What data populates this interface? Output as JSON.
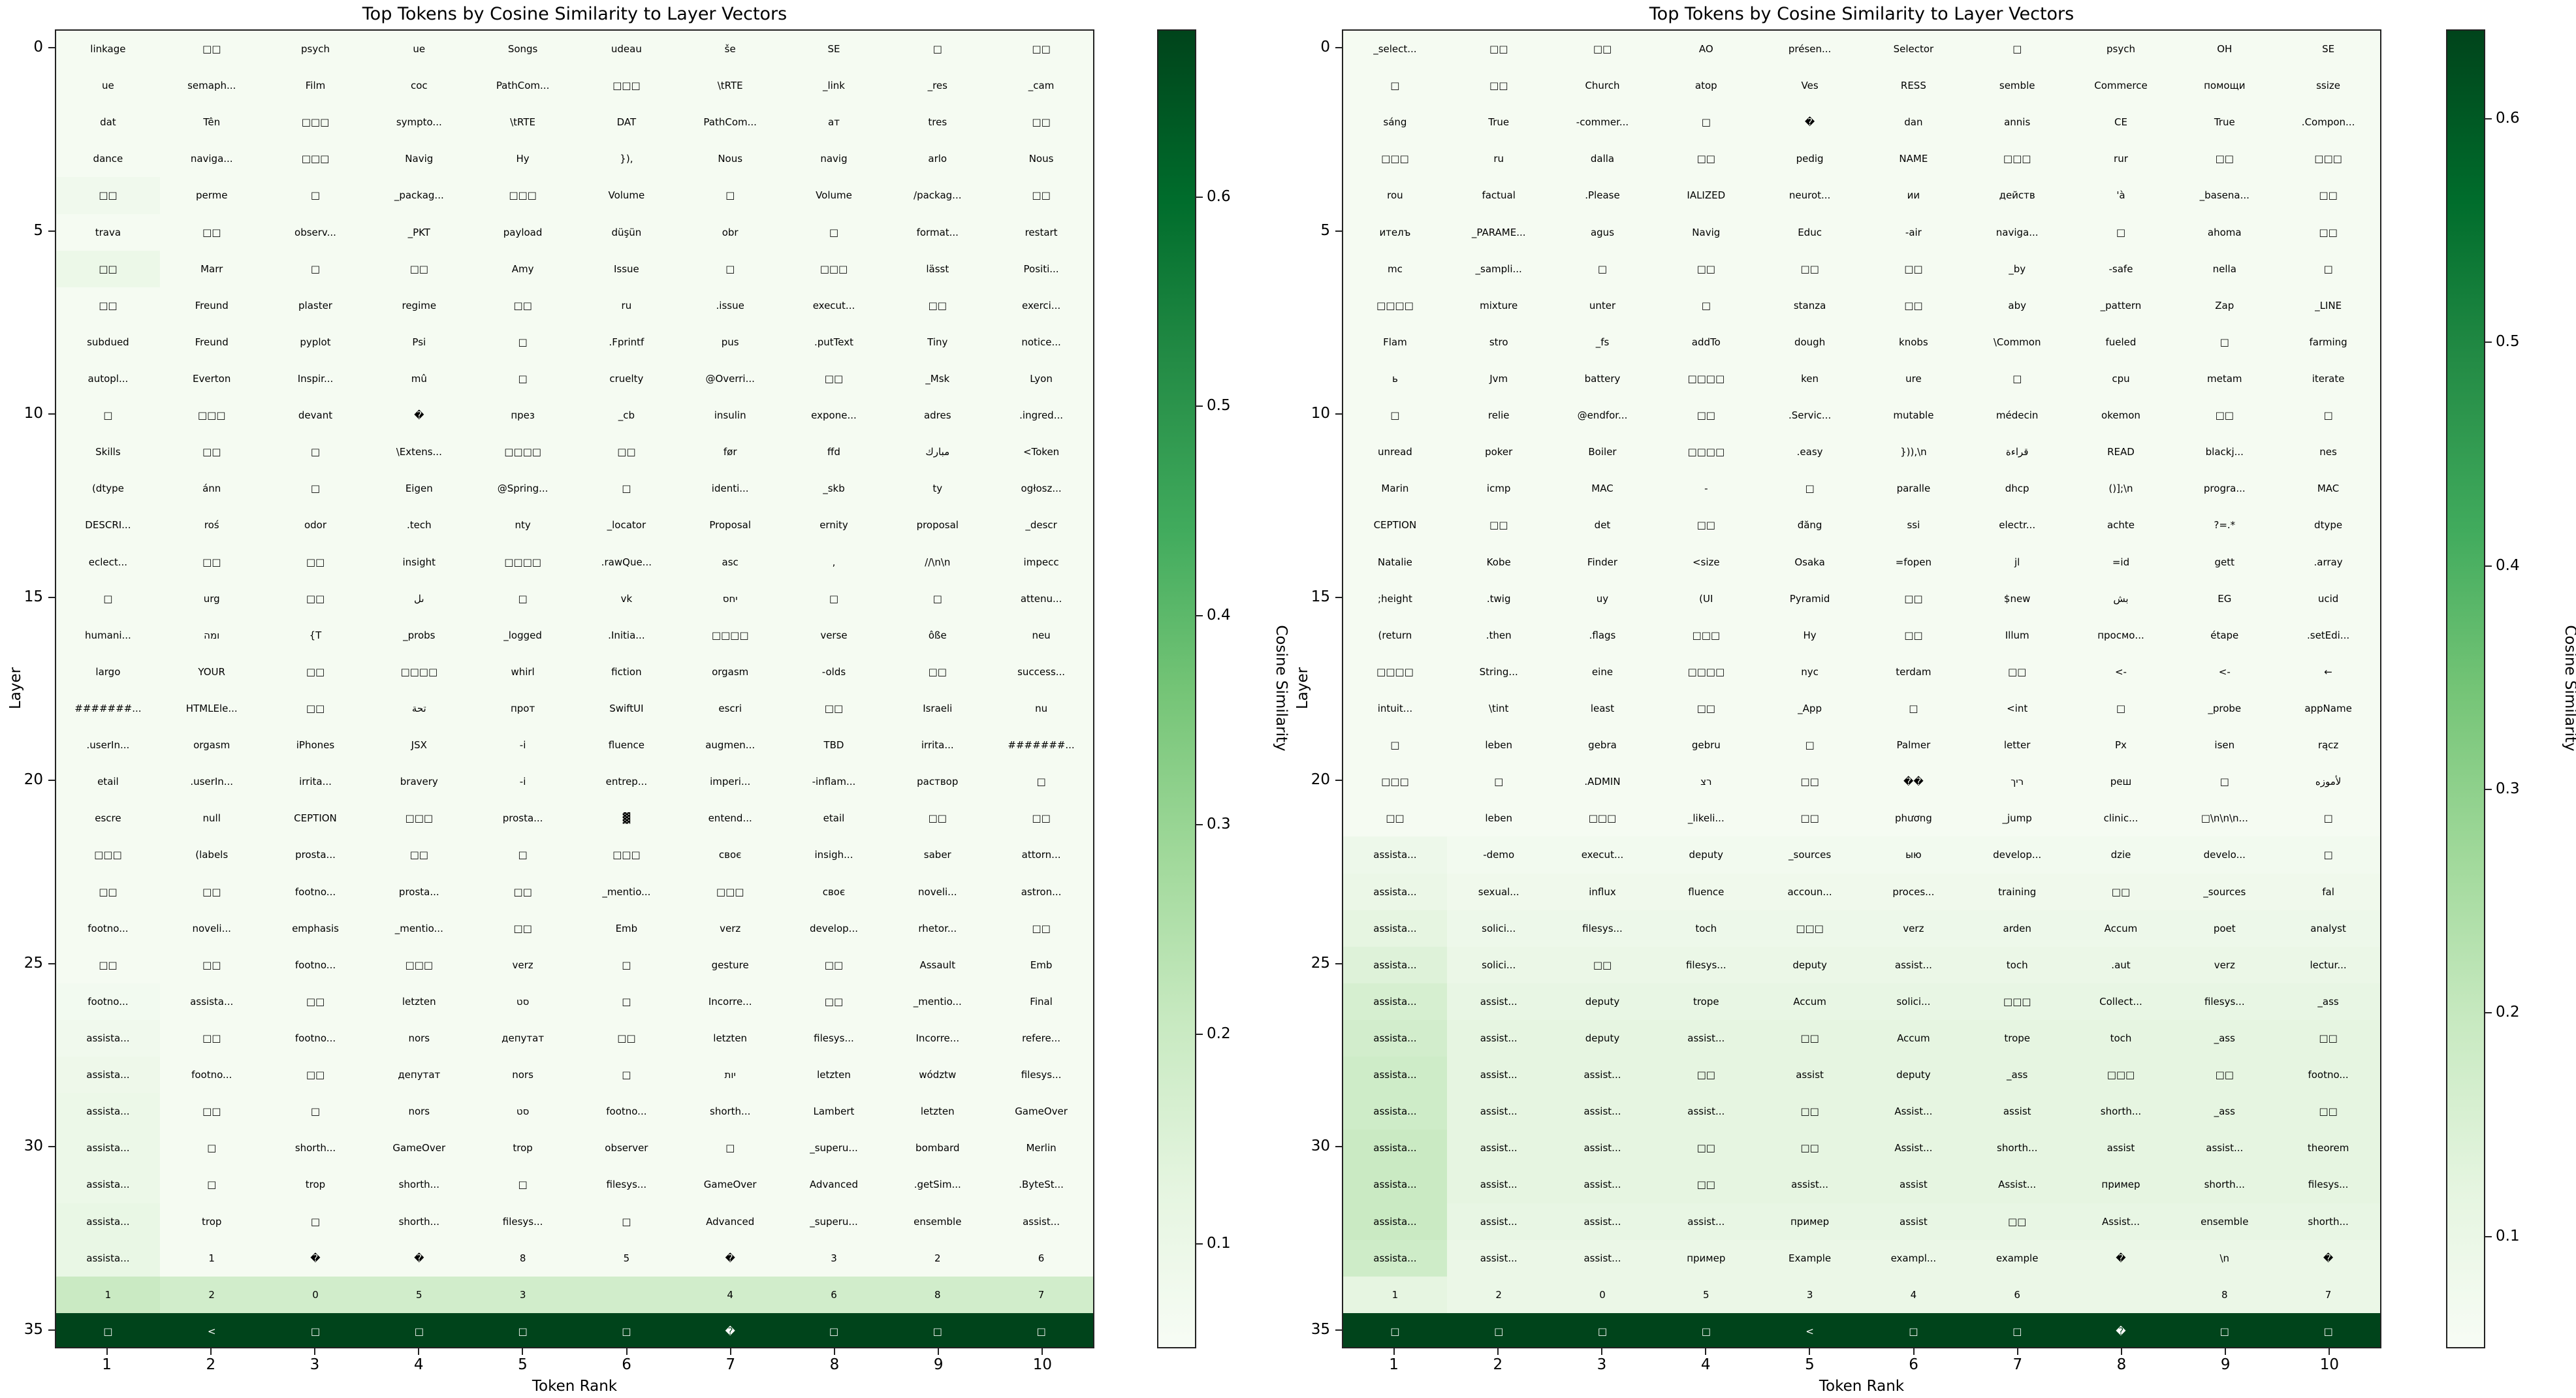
{
  "colors": {
    "low": "#f7fcf5",
    "high": "#00441b"
  },
  "yticks": [
    "0",
    "5",
    "10",
    "15",
    "20",
    "25",
    "30",
    "35"
  ],
  "xticks": [
    "1",
    "2",
    "3",
    "4",
    "5",
    "6",
    "7",
    "8",
    "9",
    "10"
  ],
  "xlabel": "Token Rank",
  "ylabel": "Layer",
  "colorbar_label": "Cosine Similarity",
  "chart_data": [
    {
      "type": "heatmap",
      "title": "Top Tokens by Cosine Similarity to Layer Vectors",
      "xlabel": "Token Rank",
      "ylabel": "Layer",
      "colorbar_label": "Cosine Similarity",
      "colorbar_ticks": [
        "0.1",
        "0.2",
        "0.3",
        "0.4",
        "0.5",
        "0.6"
      ],
      "vmin": 0.05,
      "vmax": 0.68,
      "tokens": [
        [
          "linkage",
          "□□",
          "psych",
          "ue",
          "Songs",
          "udeau",
          "še",
          "SE",
          "□",
          "□□"
        ],
        [
          "ue",
          "semaph...",
          "Film",
          "coc",
          "PathCom...",
          "□□□",
          "\\tRTE",
          "_link",
          "_res",
          "_cam"
        ],
        [
          "dat",
          "Tên",
          "□□□",
          "sympto...",
          "\\tRTE",
          "DAT",
          "PathCom...",
          "ат",
          "tres",
          "□□"
        ],
        [
          "dance",
          "naviga...",
          "□□□",
          "Navig",
          "Hy",
          "}),",
          "Nous",
          "navig",
          "arlo",
          "Nous"
        ],
        [
          "□□",
          "perme",
          "□",
          "_packag...",
          "□□□",
          "Volume",
          "□",
          "Volume",
          "/packag...",
          "□□"
        ],
        [
          "trava",
          "□□",
          "observ...",
          "_PKT",
          "payload",
          "düşün",
          "obr",
          "□",
          "format...",
          "restart"
        ],
        [
          "□□",
          "Marr",
          "□",
          "□□",
          "Amy",
          "Issue",
          "□",
          "□□□",
          "lässt",
          "Positi..."
        ],
        [
          "□□",
          "Freund",
          "plaster",
          "regime",
          "□□",
          "ru",
          ".issue",
          "execut...",
          "□□",
          "exerci..."
        ],
        [
          "subdued",
          "Freund",
          "pyplot",
          "Psi",
          "□",
          ".Fprintf",
          "pus",
          ".putText",
          "Tiny",
          "notice..."
        ],
        [
          "autopl...",
          "Everton",
          "Inspir...",
          "mû",
          "□",
          "cruelty",
          "@Overri...",
          "□□",
          "_Msk",
          "Lyon"
        ],
        [
          "□",
          "□□□",
          "devant",
          "�",
          "през",
          "_cb",
          "insulin",
          "expone...",
          "adres",
          ".ingred..."
        ],
        [
          "Skills",
          "□□",
          "□",
          "\\Extens...",
          "□□□□",
          "□□",
          "før",
          "ffd",
          "مبارك",
          "<Token"
        ],
        [
          "(dtype",
          "ánn",
          "□",
          "Eigen",
          "@Spring...",
          "□",
          "identi...",
          "_skb",
          "ty",
          "ogłosz..."
        ],
        [
          "DESCRI...",
          "roś",
          "odor",
          ".tech",
          "nty",
          "_locator",
          "Proposal",
          "ernity",
          "proposal",
          "_descr"
        ],
        [
          "eclect...",
          "□□",
          "□□",
          "insight",
          "□□□□",
          ".rawQue...",
          "asc",
          ",",
          "//\\n\\n",
          "impecc"
        ],
        [
          "□",
          "urg",
          "□□",
          "ىل",
          "□",
          "vk",
          "יחס",
          "□",
          "□",
          "attenu..."
        ],
        [
          "humani...",
          "ומה",
          "{T",
          "_probs",
          "_logged",
          ".Initia...",
          "□□□□",
          "verse",
          "ôße",
          "neu"
        ],
        [
          "largo",
          "YOUR",
          "□□",
          "□□□□",
          "whirl",
          "fiction",
          "orgasm",
          "-olds",
          "□□",
          "success..."
        ],
        [
          "#######...",
          "HTMLEle...",
          "□□",
          "تحة",
          "прот",
          "SwiftUI",
          "escri",
          "□□",
          "Israeli",
          "nu"
        ],
        [
          ".userIn...",
          "orgasm",
          "iPhones",
          "JSX",
          "-i",
          "fluence",
          "augmen...",
          "TBD",
          "irrita...",
          "#######..."
        ],
        [
          "etail",
          ".userIn...",
          "irrita...",
          "bravery",
          "-i",
          "entrep...",
          "imperi...",
          "-inflam...",
          "раствор",
          "□"
        ],
        [
          "escre",
          "null",
          "CEPTION",
          "□□□",
          "prosta...",
          "▓",
          "entend...",
          "etail",
          "□□",
          "□□"
        ],
        [
          "□□□",
          "(labels",
          "prosta...",
          "□□",
          "□",
          "□□□",
          "своє",
          "insigh...",
          "saber",
          "attorn..."
        ],
        [
          "□□",
          "□□",
          "footno...",
          "prosta...",
          "□□",
          "_mentio...",
          "□□□",
          "своє",
          "noveli...",
          "astron..."
        ],
        [
          "footno...",
          "noveli...",
          "emphasis",
          "_mentio...",
          "□□",
          "Emb",
          "verz",
          "develop...",
          "rhetor...",
          "□□"
        ],
        [
          "□□",
          "□□",
          "footno...",
          "□□□",
          "verz",
          "□",
          "gesture",
          "□□",
          "Assault",
          "Emb"
        ],
        [
          "footno...",
          "assista...",
          "□□",
          "letzten",
          "סט",
          "□",
          "Incorre...",
          "□□",
          "_mentio...",
          "Final"
        ],
        [
          "assista...",
          "□□",
          "footno...",
          "nors",
          "депутат",
          "□□",
          "letzten",
          "filesys...",
          "Incorre...",
          "refere..."
        ],
        [
          "assista...",
          "footno...",
          "□□",
          "депутат",
          "nors",
          "□",
          "יות",
          "letzten",
          "wództw",
          "filesys..."
        ],
        [
          "assista...",
          "□□",
          "□",
          "nors",
          "סט",
          "footno...",
          "shorth...",
          "Lambert",
          "letzten",
          "GameOver"
        ],
        [
          "assista...",
          "□",
          "shorth...",
          "GameOver",
          "trop",
          "observer",
          "□",
          "_superu...",
          "bombard",
          "Merlin"
        ],
        [
          "assista...",
          "□",
          "trop",
          "shorth...",
          "□",
          "filesys...",
          "GameOver",
          "Advanced",
          ".getSim...",
          ".ByteSt..."
        ],
        [
          "assista...",
          "trop",
          "□",
          "shorth...",
          "filesys...",
          "□",
          "Advanced",
          "_superu...",
          "ensemble",
          "assist..."
        ],
        [
          "assista...",
          "1",
          "�",
          "�",
          "8",
          "5",
          "�",
          "3",
          "2",
          "6"
        ],
        [
          "1",
          "2",
          "0",
          "5",
          "3",
          "",
          "4",
          "6",
          "8",
          "7"
        ],
        [
          "□",
          "<",
          "□",
          "□",
          "□",
          "□",
          "�",
          "□",
          "□",
          "□"
        ]
      ],
      "first_col_intensity": [
        0.06,
        0.06,
        0.06,
        0.06,
        0.08,
        0.06,
        0.1,
        0.06,
        0.06,
        0.06,
        0.06,
        0.06,
        0.06,
        0.06,
        0.06,
        0.06,
        0.06,
        0.06,
        0.06,
        0.06,
        0.06,
        0.06,
        0.06,
        0.06,
        0.06,
        0.06,
        0.07,
        0.08,
        0.09,
        0.1,
        0.1,
        0.1,
        0.11,
        0.11,
        0.2,
        0.68
      ],
      "rest_intensity": [
        0.06,
        0.06,
        0.06,
        0.06,
        0.06,
        0.06,
        0.06,
        0.06,
        0.06,
        0.06,
        0.06,
        0.06,
        0.06,
        0.06,
        0.06,
        0.06,
        0.06,
        0.06,
        0.06,
        0.06,
        0.06,
        0.06,
        0.06,
        0.06,
        0.06,
        0.06,
        0.06,
        0.06,
        0.06,
        0.06,
        0.06,
        0.06,
        0.06,
        0.06,
        0.18,
        0.68
      ]
    },
    {
      "type": "heatmap",
      "title": "Top Tokens by Cosine Similarity to Layer Vectors",
      "xlabel": "Token Rank",
      "ylabel": "Layer",
      "colorbar_label": "Cosine Similarity",
      "colorbar_ticks": [
        "0.1",
        "0.2",
        "0.3",
        "0.4",
        "0.5",
        "0.6"
      ],
      "vmin": 0.05,
      "vmax": 0.64,
      "tokens": [
        [
          "_select...",
          "□□",
          "□□",
          "AO",
          "présen...",
          "Selector",
          "□",
          "psych",
          "OH",
          "SE"
        ],
        [
          "□",
          "□□",
          "Church",
          "atop",
          "Ves",
          "RESS",
          "semble",
          "Commerce",
          "помощи",
          "ssize"
        ],
        [
          "sáng",
          "True",
          "-commer...",
          "□",
          "�",
          "dan",
          "annis",
          "CE",
          "True",
          ".Compon..."
        ],
        [
          "□□□",
          "ru",
          "dalla",
          "□□",
          "pedig",
          "NAME",
          "□□□",
          "rur",
          "□□",
          "□□□"
        ],
        [
          "rou",
          "factual",
          ".Please",
          "IALIZED",
          "neurot...",
          "ии",
          "действ",
          "'à",
          "_basena...",
          "□□"
        ],
        [
          "ителъ",
          "_PARAME...",
          "agus",
          "Navig",
          "Educ",
          "-air",
          "naviga...",
          "□",
          "ahoma",
          "□□"
        ],
        [
          "mc",
          "_sampli...",
          "□",
          "□□",
          "□□",
          "□□",
          "_by",
          "-safe",
          "nella",
          "□"
        ],
        [
          "□□□□",
          "mixture",
          "unter",
          "□",
          "stanza",
          "□□",
          "aby",
          "_pattern",
          "Zap",
          "_LINE"
        ],
        [
          "Flam",
          "stro",
          "_fs",
          "addTo",
          "dough",
          "knobs",
          "\\Common",
          "fueled",
          "□",
          "farming"
        ],
        [
          "ь",
          "Jvm",
          "battery",
          "□□□□",
          "ken",
          "ure",
          "□",
          "cpu",
          "metam",
          "iterate"
        ],
        [
          "□",
          "relie",
          "@endfor...",
          "□□",
          ".Servic...",
          "mutable",
          "médecin",
          "okemon",
          "□□",
          "□"
        ],
        [
          "unread",
          "poker",
          "Boiler",
          "□□□□",
          ".easy",
          "})),\\n",
          "قراءة",
          "READ",
          "blackj...",
          "nes"
        ],
        [
          "Marin",
          "icmp",
          "MAC",
          "-",
          "□",
          "paralle",
          "dhcp",
          "()];\\n",
          "progra...",
          "MAC"
        ],
        [
          "CEPTION",
          "□□",
          "det",
          "□□",
          "đăng",
          "ssi",
          "electr...",
          "achte",
          "?=.*",
          "dtype"
        ],
        [
          "Natalie",
          "Kobe",
          "Finder",
          "<size",
          "Osaka",
          "=fopen",
          "jl",
          "=id",
          "gett",
          ".array"
        ],
        [
          ";height",
          ".twig",
          "uy",
          "(UI",
          "Pyramid",
          "□□",
          "$new",
          "بش",
          "EG",
          "ucid"
        ],
        [
          "(return",
          ".then",
          ".flags",
          "□□□",
          "Hy",
          "□□",
          "Illum",
          "просмо...",
          "étape",
          ".setEdi..."
        ],
        [
          "□□□□",
          "String...",
          "eine",
          "□□□□",
          "nyc",
          "terdam",
          "□□",
          "<-",
          "<-",
          "←"
        ],
        [
          "intuit...",
          "\\tint",
          "least",
          "□□",
          "_App",
          "□",
          "<int",
          "□",
          "_probe",
          "appName"
        ],
        [
          "□",
          "leben",
          "gebra",
          "gebru",
          "□",
          "Palmer",
          "letter",
          "Px",
          "isen",
          "rącz"
        ],
        [
          "□□□",
          "□",
          ".ADMIN",
          "רצ",
          "□□",
          "��",
          "ריך",
          "реш",
          "□",
          "لأموزه"
        ],
        [
          "□□",
          "leben",
          "□□□",
          "_likeli...",
          "□□",
          "phương",
          "_jump",
          "clinic...",
          "□\\n\\n\\n...",
          "□"
        ],
        [
          "assista...",
          "-demo",
          "execut...",
          "deputy",
          "_sources",
          "ыю",
          "develop...",
          "dzie",
          "develo...",
          "□"
        ],
        [
          "assista...",
          "sexual...",
          "influx",
          "fluence",
          "accoun...",
          "proces...",
          "training",
          "□□",
          "_sources",
          "fal"
        ],
        [
          "assista...",
          "solici...",
          "filesys...",
          "toch",
          "□□□",
          "verz",
          "arden",
          "Accum",
          "poet",
          "analyst"
        ],
        [
          "assista...",
          "solici...",
          "□□",
          "filesys...",
          "deputy",
          "assist...",
          "toch",
          ".aut",
          "verz",
          "lectur..."
        ],
        [
          "assista...",
          "assist...",
          "deputy",
          "trope",
          "Accum",
          "solici...",
          "□□□",
          "Collect...",
          "filesys...",
          "_ass"
        ],
        [
          "assista...",
          "assist...",
          "deputy",
          "assist...",
          "□□",
          "Accum",
          "trope",
          "toch",
          "_ass",
          "□□"
        ],
        [
          "assista...",
          "assist...",
          "assist...",
          "□□",
          "assist",
          "deputy",
          "_ass",
          "□□□",
          "□□",
          "footno..."
        ],
        [
          "assista...",
          "assist...",
          "assist...",
          "assist...",
          "□□",
          "Assist...",
          "assist",
          "shorth...",
          "_ass",
          "□□"
        ],
        [
          "assista...",
          "assist...",
          "assist...",
          "□□",
          "□□",
          "Assist...",
          "shorth...",
          "assist",
          "assist...",
          "theorem"
        ],
        [
          "assista...",
          "assist...",
          "assist...",
          "□□",
          "assist...",
          "assist",
          "Assist...",
          "пример",
          "shorth...",
          "filesys..."
        ],
        [
          "assista...",
          "assist...",
          "assist...",
          "assist...",
          "пример",
          "assist",
          "□□",
          "Assist...",
          "ensemble",
          "shorth..."
        ],
        [
          "assista...",
          "assist...",
          "assist...",
          "пример",
          "Example",
          "exampl...",
          "example",
          "�",
          "\\n",
          "�"
        ],
        [
          "1",
          "2",
          "0",
          "5",
          "3",
          "4",
          "6",
          "",
          "8",
          "7"
        ],
        [
          "□",
          "□",
          "□",
          "□",
          "<",
          "□",
          "□",
          "�",
          "□",
          "□"
        ]
      ],
      "first_col_intensity": [
        0.06,
        0.06,
        0.06,
        0.06,
        0.06,
        0.06,
        0.06,
        0.06,
        0.06,
        0.06,
        0.06,
        0.06,
        0.06,
        0.06,
        0.06,
        0.06,
        0.06,
        0.06,
        0.06,
        0.06,
        0.06,
        0.06,
        0.09,
        0.1,
        0.12,
        0.14,
        0.16,
        0.17,
        0.18,
        0.18,
        0.19,
        0.19,
        0.19,
        0.18,
        0.12,
        0.64
      ],
      "rest_intensity": [
        0.06,
        0.06,
        0.06,
        0.06,
        0.06,
        0.06,
        0.06,
        0.06,
        0.06,
        0.06,
        0.06,
        0.06,
        0.06,
        0.06,
        0.06,
        0.06,
        0.06,
        0.06,
        0.06,
        0.06,
        0.06,
        0.06,
        0.07,
        0.08,
        0.09,
        0.1,
        0.11,
        0.12,
        0.12,
        0.12,
        0.12,
        0.12,
        0.11,
        0.1,
        0.1,
        0.64
      ]
    }
  ]
}
